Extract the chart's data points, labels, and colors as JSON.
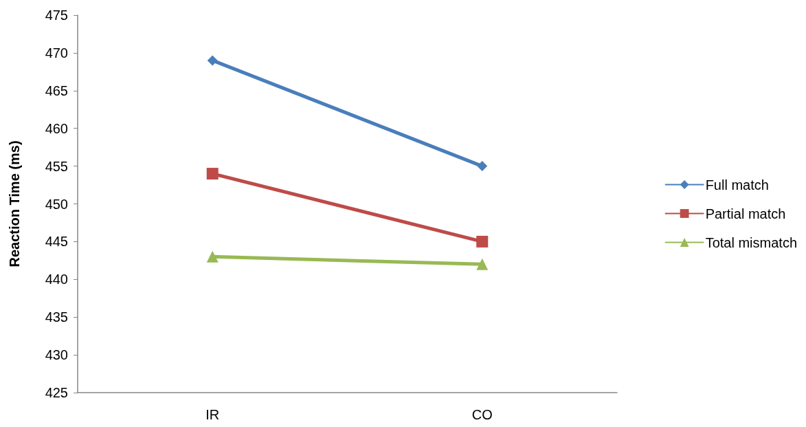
{
  "chart_data": {
    "type": "line",
    "ylabel": "Reaction Time (ms)",
    "categories": [
      "IR",
      "CO"
    ],
    "series": [
      {
        "name": "Full match",
        "color": "#4a7ebb",
        "marker": "diamond",
        "values": [
          469,
          455
        ]
      },
      {
        "name": "Partial match",
        "color": "#be4b48",
        "marker": "square",
        "values": [
          454,
          445
        ]
      },
      {
        "name": "Total mismatch",
        "color": "#98b954",
        "marker": "triangle",
        "values": [
          443,
          442
        ]
      }
    ],
    "ylim": [
      425,
      475
    ],
    "yticks": [
      425,
      430,
      435,
      440,
      445,
      450,
      455,
      460,
      465,
      470,
      475
    ],
    "grid": false,
    "legend": "right",
    "line_style": "solid"
  }
}
